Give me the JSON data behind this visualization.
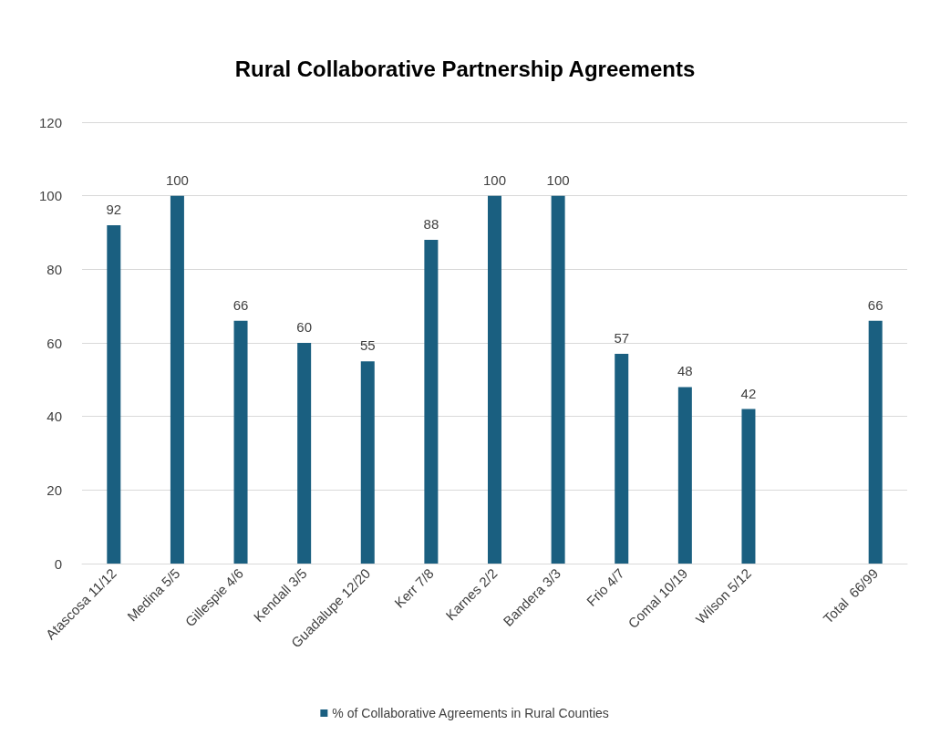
{
  "chart_data": {
    "type": "bar",
    "title": "Rural Collaborative Partnership Agreements",
    "categories": [
      "Atascosa 11/12",
      "Medina 5/5",
      "Gillespie 4/6",
      "Kendall 3/5",
      "Guadalupe 12/20",
      "Kerr 7/8",
      "Karnes 2/2",
      "Bandera 3/3",
      "Frio 4/7",
      "Comal 10/19",
      "Wilson 5/12",
      null,
      "Total  66/99"
    ],
    "series": [
      {
        "name": "% of Collaborative Agreements in Rural Counties",
        "color": "#1a5f80",
        "values": [
          92,
          100,
          66,
          60,
          55,
          88,
          100,
          100,
          57,
          48,
          42,
          null,
          66
        ]
      }
    ],
    "ylim": [
      0,
      120
    ],
    "yticks": [
      0,
      20,
      40,
      60,
      80,
      100,
      120
    ],
    "grid": "y",
    "legend": "bottom",
    "data_labels": true
  }
}
